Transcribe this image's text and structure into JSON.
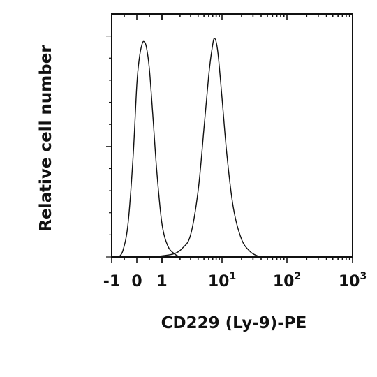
{
  "chart_data": {
    "type": "line",
    "title": "",
    "xlabel": "CD229 (Ly-9)-PE",
    "ylabel": "Relative cell number",
    "x_scale": "biexponential",
    "xlim": [
      -1,
      1000
    ],
    "ylim": [
      0,
      1.1
    ],
    "grid": false,
    "x_ticks": [
      {
        "value": -1,
        "base": "-1",
        "exp": ""
      },
      {
        "value": 0,
        "base": "0",
        "exp": ""
      },
      {
        "value": 1,
        "base": "1",
        "exp": ""
      },
      {
        "value": 10,
        "base": "10",
        "exp": "1"
      },
      {
        "value": 100,
        "base": "10",
        "exp": "2"
      },
      {
        "value": 1000,
        "base": "10",
        "exp": "3"
      }
    ],
    "series": [
      {
        "x": [
          -0.72,
          -0.55,
          -0.35,
          -0.15,
          0.0,
          0.1,
          0.2,
          0.28,
          0.38,
          0.5,
          0.65,
          0.8,
          1.0,
          1.25,
          1.6,
          2.0
        ],
        "y": [
          0.0,
          0.03,
          0.15,
          0.45,
          0.78,
          0.9,
          0.96,
          0.975,
          0.95,
          0.85,
          0.62,
          0.38,
          0.15,
          0.05,
          0.015,
          0.0
        ]
      },
      {
        "x": [
          0.5,
          1.0,
          1.6,
          2.2,
          3.0,
          4.0,
          5.0,
          6.0,
          6.8,
          7.5,
          8.5,
          10.0,
          12.0,
          15.0,
          20.0,
          27.0,
          35.0,
          42.0
        ],
        "y": [
          0.0,
          0.005,
          0.015,
          0.04,
          0.1,
          0.3,
          0.58,
          0.82,
          0.94,
          0.99,
          0.93,
          0.72,
          0.45,
          0.22,
          0.08,
          0.025,
          0.005,
          0.0
        ]
      }
    ]
  }
}
